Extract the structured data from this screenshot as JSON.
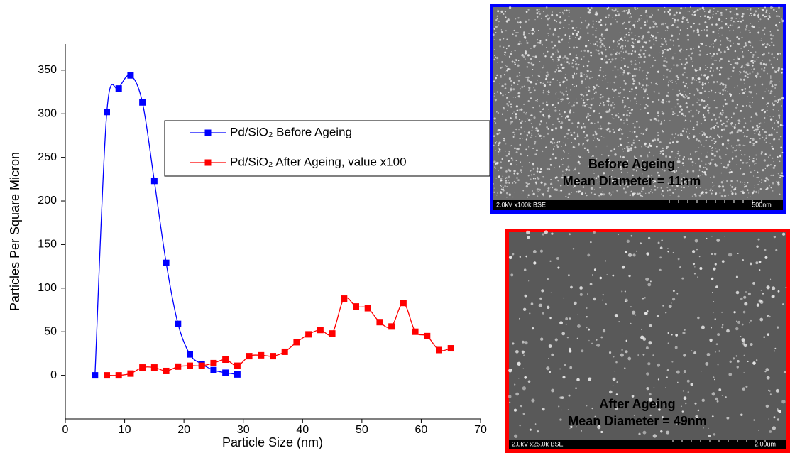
{
  "chart_data": {
    "type": "line",
    "xlabel": "Particle Size (nm)",
    "ylabel": "Particles Per Square Micron",
    "xlim": [
      0,
      70
    ],
    "xticks": [
      0,
      10,
      20,
      30,
      40,
      50,
      60,
      70
    ],
    "ylim": [
      -50,
      380
    ],
    "yticks": [
      0,
      50,
      100,
      150,
      200,
      250,
      300,
      350
    ],
    "smooth": true,
    "series": [
      {
        "name": "Pd/SiO₂ Before Ageing",
        "color": "#0000ff",
        "x": [
          5,
          7,
          9,
          11,
          13,
          15,
          17,
          19,
          21,
          23,
          25,
          27,
          29
        ],
        "values": [
          0,
          302,
          329,
          344,
          313,
          223,
          129,
          59,
          24,
          13,
          6,
          3,
          1
        ]
      },
      {
        "name": "Pd/SiO₂ After Ageing, value x100",
        "color": "#ff0000",
        "x": [
          7,
          9,
          11,
          13,
          15,
          17,
          19,
          21,
          23,
          25,
          27,
          29,
          31,
          33,
          35,
          37,
          39,
          41,
          43,
          45,
          47,
          49,
          51,
          53,
          55,
          57,
          59,
          61,
          63,
          65
        ],
        "values": [
          0,
          0,
          2,
          9,
          9,
          5,
          10,
          11,
          11,
          14,
          18,
          11,
          22,
          23,
          22,
          27,
          38,
          47,
          52,
          48,
          88,
          79,
          77,
          61,
          56,
          83,
          50,
          45,
          29,
          31
        ]
      }
    ]
  },
  "insets": [
    {
      "caption": [
        "Before Ageing",
        "Mean Diameter = 11nm"
      ],
      "info": "2.0kV x100k BSE",
      "scale": "500nm",
      "border_color": "#0000ff"
    },
    {
      "caption": [
        "After Ageing",
        "Mean Diameter = 49nm"
      ],
      "info": "2.0kV x25.0k BSE",
      "scale": "2.00um",
      "border_color": "#ff0000"
    }
  ]
}
